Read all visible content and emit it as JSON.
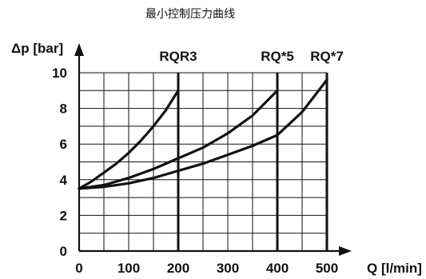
{
  "chart_data": {
    "type": "line",
    "title": "最小控制压力曲线",
    "xlabel": "Q [l/min]",
    "ylabel": "Δp [bar]",
    "xlim": [
      0,
      500
    ],
    "ylim": [
      0,
      10
    ],
    "x_ticks": [
      "0",
      "100",
      "200",
      "300",
      "400",
      "500"
    ],
    "y_ticks": [
      "0",
      "2",
      "4",
      "6",
      "8",
      "10"
    ],
    "grid": true,
    "series": [
      {
        "name": "RQR3",
        "x": [
          0,
          25,
          50,
          75,
          100,
          125,
          150,
          175,
          200
        ],
        "y": [
          3.5,
          3.9,
          4.4,
          4.9,
          5.5,
          6.2,
          7.0,
          7.9,
          9.0
        ]
      },
      {
        "name": "RQ*5",
        "x": [
          0,
          50,
          100,
          150,
          200,
          250,
          300,
          350,
          400
        ],
        "y": [
          3.5,
          3.7,
          4.1,
          4.6,
          5.2,
          5.8,
          6.6,
          7.6,
          9.0
        ]
      },
      {
        "name": "RQ*7",
        "x": [
          0,
          50,
          100,
          150,
          200,
          250,
          300,
          350,
          400,
          450,
          500
        ],
        "y": [
          3.5,
          3.6,
          3.8,
          4.1,
          4.5,
          4.9,
          5.4,
          5.9,
          6.5,
          7.8,
          9.6
        ]
      }
    ],
    "limit_lines_x": [
      200,
      400,
      500
    ]
  }
}
